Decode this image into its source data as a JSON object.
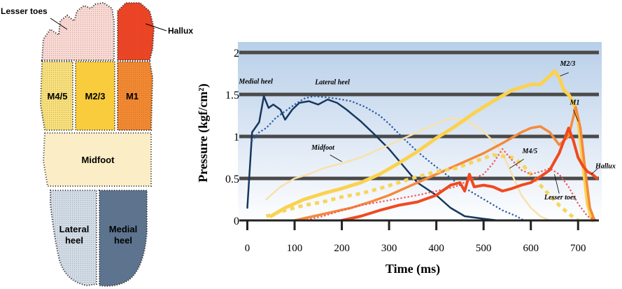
{
  "foot_map": {
    "regions": [
      {
        "key": "lesser_toes",
        "label": "Lesser toes",
        "color": "#fbd9d3",
        "pattern": "dots"
      },
      {
        "key": "hallux",
        "label": "Hallux",
        "color": "#f04423",
        "pattern": "dots"
      },
      {
        "key": "m45",
        "label": "M4/5",
        "color": "#f9e07a",
        "pattern": "dots"
      },
      {
        "key": "m23",
        "label": "M2/3",
        "color": "#f8cc3d",
        "pattern": "none"
      },
      {
        "key": "m1",
        "label": "M1",
        "color": "#f5882f",
        "pattern": "dots"
      },
      {
        "key": "midfoot",
        "label": "Midfoot",
        "color": "#fbedc5",
        "pattern": "none"
      },
      {
        "key": "lateral_heel",
        "label": "Lateral heel",
        "color": "#d2dce7",
        "pattern": "dots"
      },
      {
        "key": "medial_heel",
        "label": "Medial heel",
        "color": "#5d7591",
        "pattern": "dots"
      }
    ]
  },
  "chart_data": {
    "type": "line",
    "title": "",
    "xlabel": "Time (ms)",
    "ylabel": "Pressure (kgf/cm²)",
    "xlim": [
      -20,
      750
    ],
    "ylim": [
      0,
      2
    ],
    "xticks": [
      0,
      100,
      200,
      300,
      400,
      500,
      600,
      700
    ],
    "yticks": [
      0,
      0.5,
      1,
      1.5,
      2
    ],
    "ytick_labels": [
      "0",
      "0.5",
      "1",
      "1.5",
      "2"
    ],
    "grid": "horizontal",
    "series": [
      {
        "name": "Medial heel",
        "color": "#17375e",
        "dash": "solid",
        "width": 2.5,
        "label_at": [
          18,
          1.63
        ],
        "x": [
          0,
          10,
          25,
          35,
          45,
          55,
          70,
          80,
          95,
          110,
          130,
          150,
          170,
          190,
          210,
          240,
          270,
          300,
          330,
          360,
          400,
          430,
          460,
          500,
          530
        ],
        "y": [
          0.15,
          1.05,
          1.17,
          1.48,
          1.34,
          1.38,
          1.32,
          1.2,
          1.32,
          1.4,
          1.42,
          1.38,
          1.44,
          1.4,
          1.32,
          1.18,
          1.02,
          0.85,
          0.65,
          0.45,
          0.3,
          0.15,
          0.05,
          0.02,
          0.0
        ]
      },
      {
        "name": "Lateral heel",
        "color": "#2b5ea8",
        "dash": "dots",
        "width": 2.5,
        "label_at": [
          180,
          1.62
        ],
        "x": [
          10,
          25,
          40,
          60,
          80,
          100,
          120,
          140,
          160,
          190,
          220,
          250,
          280,
          300,
          330,
          360,
          390,
          420,
          450,
          480,
          510,
          540,
          570,
          585
        ],
        "y": [
          0.95,
          1.05,
          1.1,
          1.22,
          1.3,
          1.38,
          1.45,
          1.48,
          1.47,
          1.45,
          1.42,
          1.35,
          1.25,
          1.15,
          0.98,
          0.82,
          0.68,
          0.55,
          0.42,
          0.32,
          0.22,
          0.12,
          0.05,
          0.0
        ]
      },
      {
        "name": "Midfoot",
        "color": "#f8e1ab",
        "dash": "solid",
        "width": 2.5,
        "label_at": [
          160,
          0.84
        ],
        "x": [
          40,
          70,
          100,
          130,
          160,
          200,
          240,
          280,
          320,
          360,
          400,
          430,
          460,
          490,
          520,
          540,
          560,
          580,
          600,
          620,
          640,
          660
        ],
        "y": [
          0.25,
          0.4,
          0.5,
          0.55,
          0.62,
          0.68,
          0.75,
          0.85,
          0.95,
          1.05,
          1.15,
          1.22,
          1.2,
          1.1,
          0.95,
          0.8,
          0.55,
          0.3,
          0.15,
          0.05,
          0.0,
          0.0
        ]
      },
      {
        "name": "M2/3",
        "color": "#fbd24f",
        "dash": "solid",
        "width": 5,
        "label_at": [
          678,
          1.84
        ],
        "x": [
          50,
          80,
          120,
          160,
          200,
          240,
          280,
          320,
          360,
          400,
          440,
          480,
          520,
          560,
          600,
          620,
          640,
          650,
          660,
          670,
          680,
          690,
          700,
          710,
          720,
          730
        ],
        "y": [
          0.05,
          0.15,
          0.25,
          0.32,
          0.38,
          0.45,
          0.55,
          0.68,
          0.82,
          0.98,
          1.12,
          1.28,
          1.42,
          1.55,
          1.62,
          1.62,
          1.72,
          1.78,
          1.7,
          1.55,
          1.5,
          1.4,
          1.2,
          0.7,
          0.2,
          0.0
        ]
      },
      {
        "name": "M1",
        "color": "#f58a3c",
        "dash": "solid",
        "width": 3.5,
        "label_at": [
          693,
          1.38
        ],
        "x": [
          100,
          140,
          180,
          220,
          260,
          300,
          340,
          380,
          420,
          460,
          500,
          540,
          580,
          600,
          620,
          640,
          660,
          680,
          695,
          705,
          715,
          725,
          735
        ],
        "y": [
          0.0,
          0.05,
          0.1,
          0.15,
          0.22,
          0.3,
          0.4,
          0.5,
          0.6,
          0.7,
          0.8,
          0.92,
          1.05,
          1.1,
          1.12,
          1.05,
          0.9,
          1.0,
          1.35,
          1.1,
          0.6,
          0.15,
          0.0
        ]
      },
      {
        "name": "M4/5",
        "color": "#f6d55c",
        "dash": "dash",
        "width": 5,
        "label_at": [
          598,
          0.8
        ],
        "x": [
          40,
          80,
          120,
          160,
          200,
          240,
          280,
          320,
          360,
          400,
          440,
          480,
          520,
          560,
          580,
          600,
          620,
          640,
          660,
          680,
          700
        ],
        "y": [
          0.05,
          0.12,
          0.18,
          0.22,
          0.28,
          0.32,
          0.38,
          0.45,
          0.52,
          0.58,
          0.62,
          0.7,
          0.78,
          0.75,
          0.68,
          0.55,
          0.42,
          0.3,
          0.18,
          0.08,
          0.0
        ]
      },
      {
        "name": "Lesser toes",
        "color": "#f05a5a",
        "dash": "dots",
        "width": 2.5,
        "label_at": [
          662,
          0.25
        ],
        "x": [
          120,
          160,
          200,
          240,
          280,
          320,
          360,
          400,
          440,
          470,
          500,
          520,
          540,
          560,
          580,
          600,
          620,
          640,
          660,
          680,
          700,
          720,
          740
        ],
        "y": [
          0.0,
          0.05,
          0.12,
          0.18,
          0.22,
          0.26,
          0.3,
          0.35,
          0.4,
          0.48,
          0.55,
          0.68,
          0.85,
          0.72,
          0.6,
          0.55,
          0.58,
          0.62,
          0.55,
          0.4,
          0.2,
          0.05,
          0.0
        ]
      },
      {
        "name": "Hallux",
        "color": "#f0491f",
        "dash": "solid",
        "width": 4,
        "label_at": [
          758,
          0.62
        ],
        "x": [
          200,
          240,
          280,
          320,
          360,
          400,
          430,
          450,
          460,
          470,
          480,
          500,
          520,
          540,
          560,
          580,
          600,
          620,
          640,
          660,
          680,
          690,
          700,
          710,
          720,
          730,
          740
        ],
        "y": [
          0.0,
          0.05,
          0.12,
          0.18,
          0.22,
          0.3,
          0.42,
          0.45,
          0.35,
          0.55,
          0.4,
          0.42,
          0.4,
          0.35,
          0.38,
          0.42,
          0.45,
          0.52,
          0.6,
          0.8,
          1.1,
          0.95,
          0.75,
          0.65,
          0.58,
          0.55,
          0.5
        ]
      }
    ]
  }
}
